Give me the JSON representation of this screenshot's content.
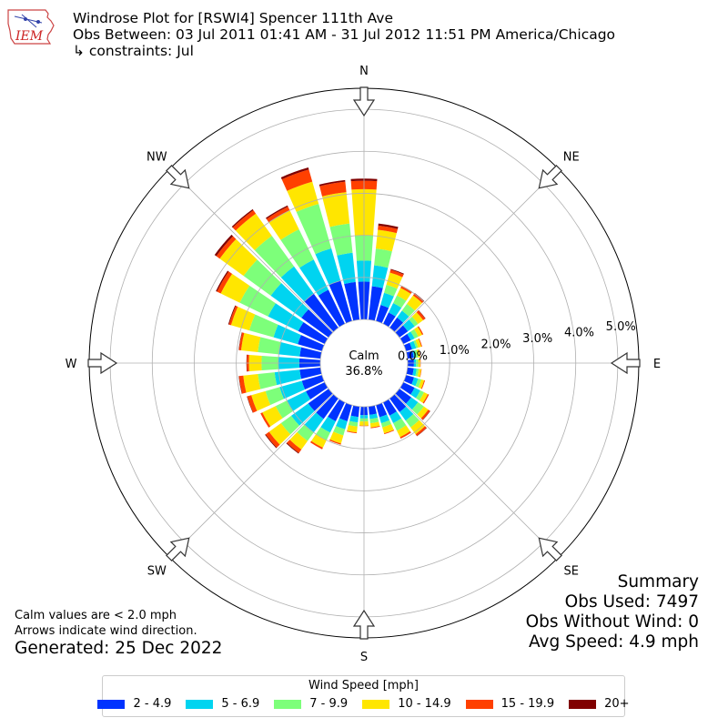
{
  "logo": {
    "text": "IEM"
  },
  "header": {
    "title": "Windrose Plot for [RSWI4] Spencer 111th Ave",
    "obs_between": "Obs Between: 03 Jul 2011 01:41 AM - 31 Jul 2012 11:51 PM America/Chicago",
    "constraints": "↳ constraints: Jul"
  },
  "summary": {
    "heading": "Summary",
    "obs_used": "Obs Used: 7497",
    "obs_without_wind": "Obs Without Wind: 0",
    "avg_speed": "Avg Speed: 4.9 mph"
  },
  "notes": {
    "calm_note": "Calm values are < 2.0 mph",
    "arrow_note": "Arrows indicate wind direction.",
    "generated": "Generated: 25 Dec 2022"
  },
  "chart_data": {
    "type": "windrose",
    "unit": "percent",
    "calm_label": "Calm",
    "calm_value": "36.8%",
    "radial_ticks": [
      0,
      1,
      2,
      3,
      4,
      5
    ],
    "radial_tick_labels": [
      "0.0%",
      "1.0%",
      "2.0%",
      "3.0%",
      "4.0%",
      "5.0%"
    ],
    "radial_max": 5.5,
    "grid": true,
    "directions": [
      "N",
      "NE",
      "E",
      "SE",
      "S",
      "SW",
      "W",
      "NW"
    ],
    "bin_width_degrees": 10,
    "bin_directions": [
      0,
      10,
      20,
      30,
      40,
      50,
      60,
      70,
      80,
      90,
      100,
      110,
      120,
      130,
      140,
      150,
      160,
      170,
      180,
      190,
      200,
      210,
      220,
      230,
      240,
      250,
      260,
      270,
      280,
      290,
      300,
      310,
      320,
      330,
      340,
      350
    ],
    "legend_title": "Wind Speed [mph]",
    "legend_position": "bottom",
    "speed_bins": [
      {
        "label": "2 - 4.9",
        "color": "#0033ff"
      },
      {
        "label": "5 - 6.9",
        "color": "#00d4f0"
      },
      {
        "label": "7 - 9.9",
        "color": "#7dff7a"
      },
      {
        "label": "10 - 14.9",
        "color": "#ffe600"
      },
      {
        "label": "15 - 19.9",
        "color": "#ff4000"
      },
      {
        "label": "20+",
        "color": "#800000"
      }
    ],
    "cumulative": [
      [
        0.9,
        1.4,
        2.0,
        3.1,
        3.3,
        3.35
      ],
      [
        0.8,
        1.3,
        1.7,
        2.15,
        2.25,
        2.3
      ],
      [
        0.4,
        0.7,
        0.9,
        1.2,
        1.27,
        1.29
      ],
      [
        0.3,
        0.55,
        0.75,
        0.95,
        1.0,
        1.01
      ],
      [
        0.3,
        0.5,
        0.7,
        0.95,
        1.0,
        1.02
      ],
      [
        0.25,
        0.45,
        0.55,
        0.7,
        0.76,
        0.77
      ],
      [
        0.2,
        0.3,
        0.4,
        0.5,
        0.53,
        0.53
      ],
      [
        0.15,
        0.25,
        0.3,
        0.38,
        0.4,
        0.4
      ],
      [
        0.15,
        0.2,
        0.25,
        0.3,
        0.31,
        0.31
      ],
      [
        0.15,
        0.2,
        0.25,
        0.3,
        0.31,
        0.31
      ],
      [
        0.15,
        0.22,
        0.27,
        0.33,
        0.34,
        0.34
      ],
      [
        0.2,
        0.3,
        0.38,
        0.45,
        0.47,
        0.47
      ],
      [
        0.3,
        0.45,
        0.55,
        0.65,
        0.68,
        0.68
      ],
      [
        0.35,
        0.55,
        0.72,
        0.85,
        0.9,
        0.91
      ],
      [
        0.4,
        0.65,
        0.85,
        1.05,
        1.1,
        1.11
      ],
      [
        0.35,
        0.55,
        0.75,
        0.92,
        0.96,
        0.96
      ],
      [
        0.3,
        0.45,
        0.55,
        0.7,
        0.72,
        0.72
      ],
      [
        0.2,
        0.3,
        0.4,
        0.5,
        0.52,
        0.52
      ],
      [
        0.2,
        0.28,
        0.35,
        0.45,
        0.46,
        0.46
      ],
      [
        0.25,
        0.38,
        0.48,
        0.62,
        0.64,
        0.64
      ],
      [
        0.4,
        0.6,
        0.75,
        0.95,
        0.98,
        0.98
      ],
      [
        0.5,
        0.8,
        1.0,
        1.2,
        1.24,
        1.24
      ],
      [
        0.6,
        1.0,
        1.25,
        1.5,
        1.6,
        1.62
      ],
      [
        0.6,
        1.1,
        1.4,
        1.75,
        1.85,
        1.87
      ],
      [
        0.5,
        1.0,
        1.3,
        1.65,
        1.7,
        1.7
      ],
      [
        0.5,
        1.05,
        1.4,
        1.75,
        1.85,
        1.86
      ],
      [
        0.5,
        1.1,
        1.5,
        1.85,
        1.95,
        1.96
      ],
      [
        0.5,
        1.0,
        1.4,
        1.7,
        1.75,
        1.76
      ],
      [
        0.5,
        1.0,
        1.5,
        1.9,
        1.95,
        1.96
      ],
      [
        0.6,
        1.2,
        1.8,
        2.25,
        2.3,
        2.32
      ],
      [
        0.7,
        1.5,
        2.25,
        2.75,
        2.85,
        2.88
      ],
      [
        0.8,
        1.7,
        2.5,
        3.2,
        3.3,
        3.35
      ],
      [
        1.0,
        1.8,
        2.7,
        3.35,
        3.45,
        3.48
      ],
      [
        0.9,
        1.7,
        2.5,
        3.0,
        3.1,
        3.13
      ],
      [
        1.0,
        1.8,
        2.9,
        3.45,
        3.75,
        3.8
      ],
      [
        0.9,
        1.6,
        2.3,
        3.05,
        3.3,
        3.34
      ]
    ]
  }
}
